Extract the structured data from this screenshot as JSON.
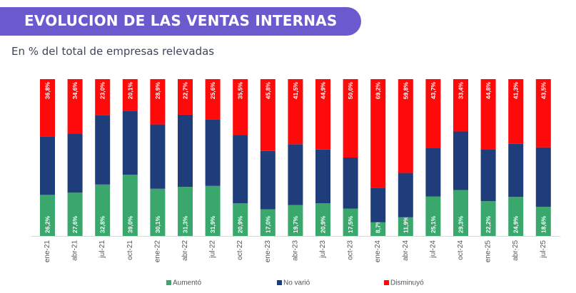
{
  "header": {
    "title": "EVOLUCION DE LAS VENTAS INTERNAS",
    "subtitle": "En % del total de empresas relevadas"
  },
  "chart_data": {
    "type": "bar",
    "stacked": true,
    "orientation": "vertical",
    "categories": [
      "ene-21",
      "abr-21",
      "jul-21",
      "oct-21",
      "ene-22",
      "abr-22",
      "jul-22",
      "oct-22",
      "ene-23",
      "abr-23",
      "jul-23",
      "oct-23",
      "ene-24",
      "abr-24",
      "jul-24",
      "oct-24",
      "ene-25",
      "abr-25",
      "jul-25"
    ],
    "ylim": [
      0,
      100
    ],
    "grid": false,
    "legend_position": "bottom",
    "series": [
      {
        "name": "Aumentó",
        "color": "#3aa76d",
        "values": [
          26.2,
          27.6,
          32.8,
          39.0,
          30.1,
          31.3,
          31.9,
          20.9,
          17.0,
          19.7,
          20.9,
          17.5,
          8.7,
          11.9,
          25.1,
          29.3,
          22.2,
          24.9,
          18.6
        ],
        "labels": [
          "26,2%",
          "27,6%",
          "32,8%",
          "39,0%",
          "30,1%",
          "31,3%",
          "31,9%",
          "20,9%",
          "17,0%",
          "19,7%",
          "20,9%",
          "17,5%",
          "8,7%",
          "11,9%",
          "25,1%",
          "29,3%",
          "22,2%",
          "24,9%",
          "18,6%"
        ]
      },
      {
        "name": "No varió",
        "color": "#1f3d7a",
        "values": [
          37.0,
          37.8,
          44.2,
          40.9,
          41.0,
          46.0,
          42.5,
          43.6,
          37.2,
          38.8,
          34.2,
          32.5,
          22.1,
          28.3,
          31.2,
          37.3,
          33.0,
          33.8,
          37.9
        ]
      },
      {
        "name": "Disminuyó",
        "color": "#ff0a0a",
        "values": [
          36.8,
          34.6,
          23.0,
          20.1,
          28.9,
          22.7,
          25.6,
          35.5,
          45.8,
          41.5,
          44.9,
          50.0,
          69.2,
          59.8,
          43.7,
          33.4,
          44.8,
          41.3,
          43.5
        ],
        "labels": [
          "36,8%",
          "34,6%",
          "23,0%",
          "20,1%",
          "28,9%",
          "22,7%",
          "25,6%",
          "35,5%",
          "45,8%",
          "41,5%",
          "44,9%",
          "50,0%",
          "69,2%",
          "59,8%",
          "43,7%",
          "33,4%",
          "44,8%",
          "41,3%",
          "43,5%"
        ]
      }
    ]
  }
}
